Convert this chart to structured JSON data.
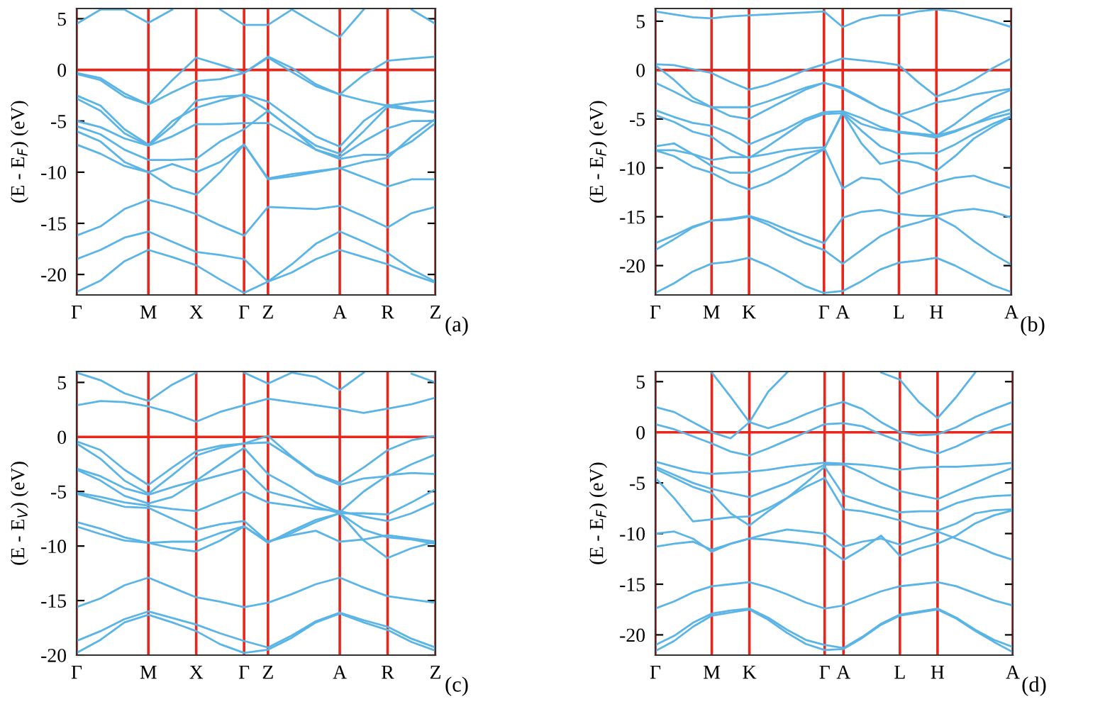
{
  "chart_data": [
    {
      "type": "line",
      "ylabel": "(E - E$_{F}$) (eV)",
      "annotations": [
        "(a)"
      ],
      "ylim": [
        -22,
        6
      ],
      "yticks": [
        -20,
        -15,
        -10,
        -5,
        0,
        5
      ],
      "categories": [
        "Γ",
        null,
        null,
        "M",
        null,
        "X",
        null,
        "Γ",
        "Z",
        null,
        null,
        "A",
        null,
        "R",
        null,
        "Z"
      ],
      "ref_lines": [
        {
          "axis": "y",
          "value": 0,
          "color": "#e8261c"
        }
      ],
      "grid": "x",
      "series": [
        {
          "color": "#5ab4e5",
          "values": [
            4.5,
            5.9,
            5.9,
            4.6,
            5.9,
            null,
            5.9,
            4.4,
            4.4,
            5.9,
            4.5,
            3.2,
            5.9,
            null,
            5.9,
            4.5
          ]
        },
        {
          "color": "#5ab4e5",
          "values": [
            -0.3,
            -0.8,
            -2.3,
            -3.4,
            -1.0,
            1.2,
            0.5,
            -0.3,
            1.3,
            0.2,
            -1.4,
            -2.4,
            -0.5,
            0.9,
            1.1,
            1.3
          ]
        },
        {
          "color": "#5ab4e5",
          "values": [
            -0.4,
            -1.0,
            -2.6,
            -3.4,
            -2.2,
            -1.1,
            -0.9,
            -0.3,
            1.2,
            -0.2,
            -1.6,
            -2.4,
            -3.0,
            -3.5,
            -3.2,
            -3.0
          ]
        },
        {
          "color": "#5ab4e5",
          "values": [
            -2.5,
            -3.5,
            -5.8,
            -7.3,
            -5,
            -3.7,
            -3,
            -2.4,
            -3.1,
            -4.8,
            -6.5,
            -7.5,
            -5,
            -3.4,
            -3.8,
            -4.2
          ]
        },
        {
          "color": "#5ab4e5",
          "values": [
            -2.8,
            -4.0,
            -6.2,
            -7.4,
            -5.5,
            -3.0,
            -2.6,
            -2.5,
            -4.0,
            -5.8,
            -7.4,
            -8.2,
            -6,
            -3.6,
            -3.9,
            -4.1
          ]
        },
        {
          "color": "#5ab4e5",
          "values": [
            -5.0,
            -5.6,
            -6.7,
            -7.4,
            -6.5,
            -5.3,
            -5.3,
            -5.2,
            -5.2,
            -6.5,
            -7.8,
            -8.5,
            -7,
            -5.7,
            -5.0,
            -5.0
          ]
        },
        {
          "color": "#5ab4e5",
          "values": [
            -5.5,
            -6.3,
            -7.8,
            -8.8,
            -8.8,
            -8.7,
            -7,
            -5.8,
            -4.0,
            -5.8,
            -7.8,
            -8.7,
            -8.3,
            -8.3,
            -7,
            -5.2
          ]
        },
        {
          "color": "#5ab4e5",
          "values": [
            -6.0,
            -7.0,
            -9.0,
            -10,
            -9.2,
            -10,
            -9,
            -7.3,
            -10.7,
            -10.4,
            -10.0,
            -9.6,
            -10.5,
            -11.4,
            -10.7,
            -10.7
          ]
        },
        {
          "color": "#5ab4e5",
          "values": [
            -7.3,
            -8.2,
            -9.4,
            -10,
            -11.5,
            -12.2,
            -10,
            -7.3,
            -10.6,
            -10.2,
            -9.9,
            -9.6,
            -9,
            -8.6,
            -6.5,
            -4.8
          ]
        },
        {
          "color": "#5ab4e5",
          "values": [
            -16.2,
            -15.3,
            -13.6,
            -12.7,
            -13.3,
            -14.1,
            -15.2,
            -16.2,
            -13.4,
            -13.5,
            -13.6,
            -13.3,
            -14.3,
            -15.4,
            -14,
            -13.4
          ]
        },
        {
          "color": "#5ab4e5",
          "values": [
            -18.5,
            -17.6,
            -16.4,
            -15.8,
            -16.8,
            -17.8,
            -18.1,
            -18.5,
            -20.7,
            -19.0,
            -17.0,
            -15.8,
            -16.8,
            -17.9,
            -19.5,
            -20.7
          ]
        },
        {
          "color": "#5ab4e5",
          "values": [
            -21.7,
            -20.6,
            -18.7,
            -17.6,
            -18.3,
            -19.1,
            -20.5,
            -21.8,
            -20.7,
            -19.8,
            -18.5,
            -17.6,
            -18.3,
            -19.0,
            -20,
            -20.8
          ]
        }
      ]
    },
    {
      "type": "line",
      "ylabel": "(E - E$_{F}$) (eV)",
      "annotations": [
        "(b)"
      ],
      "ylim": [
        -23,
        6.3
      ],
      "yticks": [
        -20,
        -15,
        -10,
        -5,
        0,
        5
      ],
      "categories": [
        "Γ",
        null,
        null,
        "M",
        null,
        "K",
        null,
        null,
        null,
        "Γ",
        "A",
        null,
        null,
        "L",
        null,
        "H",
        null,
        null,
        null,
        "A"
      ],
      "ref_lines": [
        {
          "axis": "y",
          "value": 0,
          "color": "#e8261c"
        }
      ],
      "grid": "x",
      "series": [
        {
          "color": "#5ab4e5",
          "values": [
            6,
            5.7,
            5.4,
            5.3,
            5.5,
            5.6,
            5.7,
            5.8,
            5.9,
            6,
            4.4,
            5.2,
            5.6,
            5.6,
            6,
            6.2,
            6.0,
            5.5,
            5.0,
            4.4
          ]
        },
        {
          "color": "#5ab4e5",
          "values": [
            0.6,
            0.5,
            0.1,
            -0.3,
            -1.2,
            -2.0,
            -1.5,
            -0.8,
            0,
            0.6,
            1.2,
            1.0,
            0.8,
            0.5,
            -1.2,
            -2.7,
            -2.0,
            -1,
            0.2,
            1.2
          ]
        },
        {
          "color": "#5ab4e5",
          "values": [
            0.5,
            -1.0,
            -2.8,
            -3.8,
            -3.8,
            -3.8,
            -3.2,
            -2.5,
            -1.8,
            -1.3,
            -1.8,
            -2.8,
            -3.9,
            -4.6,
            -4,
            -3.3,
            -3.0,
            -2.5,
            -2.2,
            -1.9
          ]
        },
        {
          "color": "#5ab4e5",
          "values": [
            -1.3,
            -2.2,
            -3.2,
            -3.8,
            -4.7,
            -5.0,
            -4.0,
            -3,
            -2.0,
            -1.3,
            -1.9,
            -2.9,
            -3.9,
            -4.6,
            -5.5,
            -6.7,
            -5.5,
            -4,
            -2.8,
            -2.0
          ]
        },
        {
          "color": "#5ab4e5",
          "values": [
            -4.1,
            -4.8,
            -5.4,
            -5.7,
            -6.5,
            -7.6,
            -6.8,
            -6,
            -5.0,
            -4.3,
            -4.2,
            -4.9,
            -5.8,
            -6.4,
            -6.6,
            -6.9,
            -6.3,
            -5.5,
            -4.6,
            -4.0
          ]
        },
        {
          "color": "#5ab4e5",
          "values": [
            -4.6,
            -5.3,
            -6.3,
            -6.8,
            -8.2,
            -9.0,
            -7.8,
            -6.5,
            -5.2,
            -4.5,
            -4.4,
            -6.2,
            -7.8,
            -8.6,
            -8.5,
            -8.5,
            -7.6,
            -6.5,
            -5.5,
            -4.7
          ]
        },
        {
          "color": "#5ab4e5",
          "values": [
            -7.8,
            -7.5,
            -8.6,
            -9.8,
            -10.5,
            -10.5,
            -9.8,
            -9,
            -8.5,
            -8.1,
            -4.4,
            -7.5,
            -9.6,
            -9.2,
            -9.5,
            -10.3,
            -8.8,
            -7,
            -5.8,
            -4.8
          ]
        },
        {
          "color": "#5ab4e5",
          "values": [
            -8.2,
            -8.2,
            -8.6,
            -9.2,
            -8.9,
            -8.9,
            -8.6,
            -8.2,
            -8.0,
            -7.9,
            -12.1,
            -11.0,
            -11.2,
            -12.7,
            -12.1,
            -11.5,
            -11.0,
            -10.8,
            -11.5,
            -12.1
          ]
        },
        {
          "color": "#5ab4e5",
          "values": [
            -8.2,
            -8.8,
            -9.9,
            -10.5,
            -11.5,
            -12.2,
            -11.5,
            -10.5,
            -9.2,
            -8.1,
            -4.3,
            -5.5,
            -6.1,
            -6.3,
            -6.5,
            -6.7,
            -6.2,
            -5.5,
            -4.9,
            -4.4
          ]
        },
        {
          "color": "#5ab4e5",
          "values": [
            -17.7,
            -16.9,
            -16.0,
            -15.4,
            -15.2,
            -14.9,
            -15.5,
            -16.3,
            -17.0,
            -17.7,
            -15.1,
            -14.5,
            -14.3,
            -14.7,
            -14.9,
            -14.9,
            -14.4,
            -14.2,
            -14.5,
            -15.1
          ]
        },
        {
          "color": "#5ab4e5",
          "values": [
            -18.4,
            -17.3,
            -16.1,
            -15.4,
            -15.3,
            -15.0,
            -15.8,
            -16.8,
            -17.7,
            -18.4,
            -19.8,
            -18.4,
            -17.0,
            -16.1,
            -15.6,
            -15.0,
            -16.0,
            -17.5,
            -18.8,
            -19.9
          ]
        },
        {
          "color": "#5ab4e5",
          "values": [
            -22.8,
            -21.8,
            -20.6,
            -19.8,
            -19.6,
            -19.2,
            -20.0,
            -21,
            -22.1,
            -22.8,
            -22.6,
            -21.6,
            -20.4,
            -19.7,
            -19.5,
            -19.2,
            -20.0,
            -21,
            -22.0,
            -22.7
          ]
        }
      ]
    },
    {
      "type": "line",
      "ylabel": "(E - E$_{V}$) (eV)",
      "annotations": [
        "(c)"
      ],
      "ylim": [
        -20,
        6
      ],
      "yticks": [
        -20,
        -15,
        -10,
        -5,
        0,
        5
      ],
      "categories": [
        "Γ",
        null,
        null,
        "M",
        null,
        "X",
        null,
        "Γ",
        "Z",
        null,
        null,
        "A",
        null,
        "R",
        null,
        "Z"
      ],
      "ref_lines": [
        {
          "axis": "y",
          "value": 0,
          "color": "#e8261c"
        }
      ],
      "grid": "x",
      "series": [
        {
          "color": "#5ab4e5",
          "values": [
            2.9,
            3.3,
            3.2,
            2.8,
            2.2,
            1.4,
            2.3,
            2.9,
            3.5,
            3.2,
            2.9,
            2.6,
            2.2,
            2.6,
            3.0,
            3.6
          ]
        },
        {
          "color": "#5ab4e5",
          "values": [
            5.9,
            5.2,
            4.0,
            3.3,
            4.8,
            5.9,
            null,
            5.9,
            4.9,
            5.9,
            5.5,
            4.3,
            5.9,
            null,
            5.8,
            5
          ]
        },
        {
          "color": "#5ab4e5",
          "values": [
            -0.4,
            -1.2,
            -3.0,
            -4.4,
            -2.8,
            -1.3,
            -0.8,
            -0.6,
            0.1,
            -1.8,
            -3.4,
            -4.2,
            -2.8,
            -1.2,
            -0.3,
            0.1
          ]
        },
        {
          "color": "#5ab4e5",
          "values": [
            -0.6,
            -2.0,
            -4.0,
            -5.2,
            -3.5,
            -1.7,
            -1,
            -0.6,
            -0.5,
            -1.9,
            -3.5,
            -4.4,
            -3.8,
            -3.6,
            -2.5,
            -1.6
          ]
        },
        {
          "color": "#5ab4e5",
          "values": [
            -2.9,
            -3.6,
            -4.7,
            -5.3,
            -4.6,
            -4.0,
            -2.5,
            -1.0,
            -3.4,
            -4.6,
            -6.0,
            -6.9,
            -5,
            -3.5,
            -3.3,
            -3.4
          ]
        },
        {
          "color": "#5ab4e5",
          "values": [
            -3.0,
            -4.0,
            -5.4,
            -6.1,
            -5.5,
            -4.1,
            -3.5,
            -2.9,
            -5.0,
            -5.6,
            -6.4,
            -7.0,
            -7.0,
            -7.1,
            -6,
            -4.8
          ]
        },
        {
          "color": "#5ab4e5",
          "values": [
            -5.1,
            -5.5,
            -6.0,
            -6.3,
            -6.6,
            -6.8,
            -5.9,
            -5.0,
            -6.0,
            -6.3,
            -6.6,
            -6.8,
            -7.3,
            -7.7,
            -7,
            -6.0
          ]
        },
        {
          "color": "#5ab4e5",
          "values": [
            -5.2,
            -5.8,
            -6.4,
            -6.5,
            -7.5,
            -8.5,
            -8,
            -7.7,
            -9.6,
            -9.0,
            -8.6,
            -9.6,
            -9.4,
            -9.0,
            -9.3,
            -9.6
          ]
        },
        {
          "color": "#5ab4e5",
          "values": [
            -7.8,
            -8.4,
            -9.2,
            -9.7,
            -9.6,
            -9.6,
            -8.8,
            -8.2,
            -9.7,
            -8.6,
            -7.6,
            -7.0,
            -9.5,
            -11.1,
            -10.2,
            -9.6
          ]
        },
        {
          "color": "#5ab4e5",
          "values": [
            -8.2,
            -8.9,
            -9.5,
            -9.7,
            -10.2,
            -10.5,
            -9.5,
            -8.2,
            -9.6,
            -8.8,
            -7.8,
            -7.0,
            -8.5,
            -9.2,
            -9.4,
            -9.8
          ]
        },
        {
          "color": "#5ab4e5",
          "values": [
            -15.6,
            -14.8,
            -13.6,
            -12.9,
            -13.8,
            -14.7,
            -15.1,
            -15.6,
            -15.2,
            -14.4,
            -13.5,
            -12.9,
            -13.8,
            -14.6,
            -14.9,
            -15.2
          ]
        },
        {
          "color": "#5ab4e5",
          "values": [
            -18.7,
            -17.8,
            -16.7,
            -16.0,
            -16.6,
            -17.2,
            -18,
            -18.7,
            -19.3,
            -18.2,
            -16.9,
            -16.1,
            -16.8,
            -17.4,
            -18.5,
            -19.3
          ]
        },
        {
          "color": "#5ab4e5",
          "values": [
            -19.8,
            -18.6,
            -17.0,
            -16.3,
            -17,
            -17.8,
            -19,
            -19.8,
            -19.5,
            -18.4,
            -17.0,
            -16.2,
            -17,
            -17.7,
            -18.8,
            -19.6
          ]
        }
      ]
    },
    {
      "type": "line",
      "ylabel": "(E - E$_{F}$) (eV)",
      "annotations": [
        "(d)"
      ],
      "ylim": [
        -22,
        6
      ],
      "yticks": [
        -20,
        -15,
        -10,
        -5,
        0,
        5
      ],
      "categories": [
        "Γ",
        null,
        null,
        "M",
        null,
        "K",
        null,
        null,
        null,
        "Γ",
        "A",
        null,
        null,
        "L",
        null,
        "H",
        null,
        null,
        null,
        "A"
      ],
      "ref_lines": [
        {
          "axis": "y",
          "value": 0,
          "color": "#e8261c"
        }
      ],
      "grid": "x",
      "series": [
        {
          "color": "#5ab4e5",
          "values": [
            2.5,
            2.0,
            1.0,
            0,
            -0.6,
            1.0,
            4.0,
            5.9,
            null,
            null,
            null,
            null,
            null,
            null,
            null,
            null,
            null,
            null,
            null,
            null
          ]
        },
        {
          "color": "#5ab4e5",
          "values": [
            null,
            null,
            null,
            5.9,
            3.5,
            1.0,
            0.4,
            1.0,
            1.8,
            2.5,
            3.0,
            2.3,
            1.0,
            0,
            -0.3,
            -0.2,
            0.5,
            1.5,
            2.3,
            3.0
          ]
        },
        {
          "color": "#5ab4e5",
          "values": [
            null,
            null,
            null,
            null,
            null,
            null,
            null,
            null,
            null,
            null,
            null,
            null,
            5.9,
            5.2,
            3.0,
            1.4,
            3.5,
            5.9,
            null,
            null
          ]
        },
        {
          "color": "#5ab4e5",
          "values": [
            0.8,
            0.3,
            -0.4,
            -1.1,
            -1.9,
            -2.3,
            -1.6,
            -0.8,
            0,
            0.8,
            0.9,
            0.6,
            -0.2,
            -0.9,
            -1.6,
            -2.1,
            -1.4,
            -0.5,
            0.3,
            0.9
          ]
        },
        {
          "color": "#5ab4e5",
          "values": [
            -2.9,
            -3.4,
            -3.9,
            -4.1,
            -4.0,
            -3.9,
            -3.7,
            -3.4,
            -3.2,
            -3.0,
            -3.1,
            -3.2,
            -3.4,
            -3.7,
            -3.5,
            -3.4,
            -3.4,
            -3.3,
            -3.2,
            -3.0
          ]
        },
        {
          "color": "#5ab4e5",
          "values": [
            -3.4,
            -4.2,
            -5.0,
            -5.6,
            -6.0,
            -6.4,
            -5.7,
            -5.0,
            -4.1,
            -3.2,
            -3.2,
            -4.0,
            -5.0,
            -5.8,
            -6.2,
            -6.6,
            -5.8,
            -5.0,
            -4.2,
            -3.5
          ]
        },
        {
          "color": "#5ab4e5",
          "values": [
            -3.6,
            -4.5,
            -5.4,
            -6.0,
            -8,
            -9.2,
            -7.8,
            -6.5,
            -5.0,
            -3.4,
            -6.2,
            -6.8,
            -7.4,
            -7.9,
            -7.8,
            -7.8,
            -7.0,
            -6.5,
            -6.3,
            -6.2
          ]
        },
        {
          "color": "#5ab4e5",
          "values": [
            -4.5,
            -6.5,
            -8.8,
            -8.6,
            -8.4,
            -8.3,
            -7.5,
            -6.5,
            -5.4,
            -4.5,
            -7.6,
            -7.8,
            -8.2,
            -8.7,
            -9.3,
            -9.7,
            -9.0,
            -8,
            -7.7,
            -7.6
          ]
        },
        {
          "color": "#5ab4e5",
          "values": [
            -10.0,
            -9.8,
            -10.5,
            -11.8,
            -11,
            -10.5,
            -10,
            -9.6,
            -9.8,
            -10.0,
            -11.3,
            -10.8,
            -10.5,
            -11.1,
            -10.5,
            -9.8,
            -10.5,
            -11.2,
            -12.0,
            -12.6
          ]
        },
        {
          "color": "#5ab4e5",
          "values": [
            -11.3,
            -11.0,
            -10.8,
            -11.6,
            -11,
            -10.5,
            -10.6,
            -10.8,
            -11.0,
            -11.3,
            -12.6,
            -11.5,
            -10.2,
            -12.2,
            -11.5,
            -11.0,
            -10.2,
            -9,
            -8.2,
            -7.7
          ]
        },
        {
          "color": "#5ab4e5",
          "values": [
            -17.4,
            -16.7,
            -15.8,
            -15.2,
            -15.0,
            -14.8,
            -15.3,
            -16,
            -16.8,
            -17.4,
            -17.1,
            -16.4,
            -15.7,
            -15.2,
            -15.0,
            -14.8,
            -15.2,
            -15.9,
            -16.6,
            -17.1
          ]
        },
        {
          "color": "#5ab4e5",
          "values": [
            -21.0,
            -20.1,
            -18.8,
            -17.9,
            -17.6,
            -17.4,
            -18.3,
            -19.5,
            -20.5,
            -21.0,
            -21.3,
            -20.2,
            -18.9,
            -18.0,
            -17.7,
            -17.4,
            -18.3,
            -19.5,
            -20.5,
            -21.2
          ]
        },
        {
          "color": "#5ab4e5",
          "values": [
            -21.6,
            -20.6,
            -19.2,
            -18.1,
            -17.8,
            -17.5,
            -18.5,
            -19.8,
            -20.9,
            -21.5,
            -21.4,
            -20.3,
            -19.0,
            -18.1,
            -17.8,
            -17.5,
            -18.4,
            -19.6,
            -20.7,
            -21.7
          ]
        }
      ]
    }
  ]
}
